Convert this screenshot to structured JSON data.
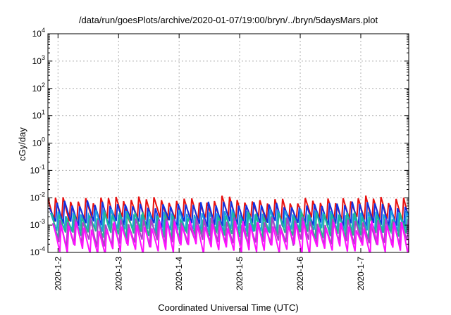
{
  "chart_data": {
    "type": "line",
    "title": "/data/run/goesPlots/archive/2020-01-07/19:00/bryn/../bryn/5daysMars.plot",
    "xlabel": "Coordinated Universal Time (UTC)",
    "ylabel": "cGy/day",
    "yscale": "log",
    "ylim": [
      0.0001,
      10000
    ],
    "y_tick_values": [
      0.0001,
      0.001,
      0.01,
      0.1,
      1,
      10,
      100,
      1000,
      10000
    ],
    "y_tick_exponents": [
      "-4",
      "-3",
      "-2",
      "-1",
      "0",
      "1",
      "2",
      "3",
      "4"
    ],
    "y_tick_base": "10",
    "xlim": [
      "2020-01-01T20:00",
      "2020-01-07T19:00"
    ],
    "x_tick_values": [
      "2020-01-02T00:00",
      "2020-01-03T00:00",
      "2020-01-04T00:00",
      "2020-01-05T00:00",
      "2020-01-06T00:00",
      "2020-01-07T00:00"
    ],
    "x_tick_labels": [
      "2020-1-2",
      "2020-1-3",
      "2020-1-4",
      "2020-1-5",
      "2020-1-6",
      "2020-1-7"
    ],
    "grid": true,
    "legend": "none",
    "cycle_hours": 3,
    "series": [
      {
        "color": "#e81010",
        "peak_range": [
          0.006,
          0.012
        ],
        "trough_range": [
          0.0012,
          0.002
        ],
        "phase": 0.0
      },
      {
        "color": "#1030e0",
        "peak_range": [
          0.004,
          0.008
        ],
        "trough_range": [
          0.0008,
          0.0015
        ],
        "phase": 0.2
      },
      {
        "color": "#1a9fe0",
        "peak_range": [
          0.002,
          0.004
        ],
        "trough_range": [
          0.0005,
          0.0008
        ],
        "phase": 0.35
      },
      {
        "color": "#20b890",
        "peak_range": [
          0.0015,
          0.003
        ],
        "trough_range": [
          0.0003,
          0.0006
        ],
        "phase": 0.5
      },
      {
        "color": "#b040c8",
        "peak_range": [
          0.001,
          0.002
        ],
        "trough_range": [
          0.00015,
          0.0003
        ],
        "phase": 0.62
      },
      {
        "color": "#ff10ff",
        "peak_range": [
          0.0006,
          0.0015
        ],
        "trough_range": [
          8e-05,
          0.0002
        ],
        "phase": 0.75
      }
    ]
  }
}
